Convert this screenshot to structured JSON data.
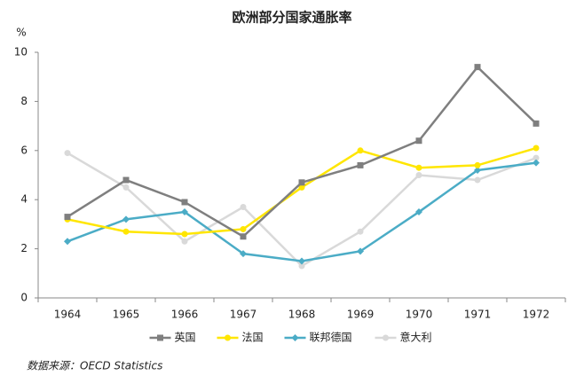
{
  "chart_data": {
    "type": "line",
    "title": "欧洲部分国家通胀率",
    "y_unit": "%",
    "categories": [
      "1964",
      "1965",
      "1966",
      "1967",
      "1968",
      "1969",
      "1970",
      "1971",
      "1972"
    ],
    "series": [
      {
        "name": "英国",
        "color": "#7f7f7f",
        "marker": "square",
        "values": [
          3.3,
          4.8,
          3.9,
          2.5,
          4.7,
          5.4,
          6.4,
          9.4,
          7.1
        ]
      },
      {
        "name": "法国",
        "color": "#ffe600",
        "marker": "circle",
        "values": [
          3.2,
          2.7,
          2.6,
          2.8,
          4.5,
          6.0,
          5.3,
          5.4,
          6.1
        ]
      },
      {
        "name": "联邦德国",
        "color": "#4bacc6",
        "marker": "diamond",
        "values": [
          2.3,
          3.2,
          3.5,
          1.8,
          1.5,
          1.9,
          3.5,
          5.2,
          5.5
        ]
      },
      {
        "name": "意大利",
        "color": "#d9d9d9",
        "marker": "circle",
        "values": [
          5.9,
          4.5,
          2.3,
          3.7,
          1.3,
          2.7,
          5.0,
          4.8,
          5.7
        ]
      }
    ],
    "ylim": [
      0,
      10
    ],
    "yticks": [
      0,
      2,
      4,
      6,
      8,
      10
    ],
    "grid": false,
    "legend": "bottom",
    "source": "数据来源：OECD Statistics"
  }
}
